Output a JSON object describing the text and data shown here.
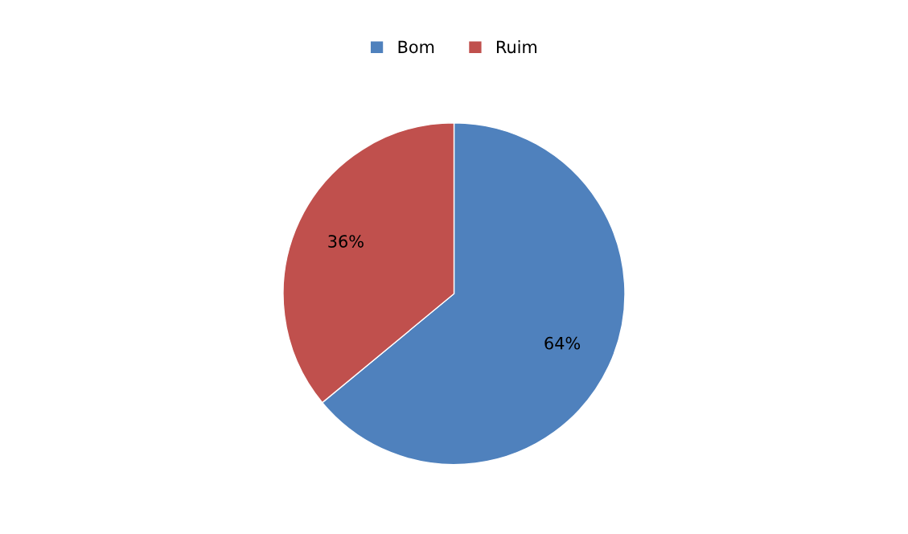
{
  "chart_data": {
    "type": "pie",
    "categories": [
      "Bom",
      "Ruim"
    ],
    "values": [
      64,
      36
    ],
    "colors": [
      "#4f81bd",
      "#c0504d"
    ],
    "value_labels": [
      "64%",
      "36%"
    ],
    "legend": "top"
  }
}
